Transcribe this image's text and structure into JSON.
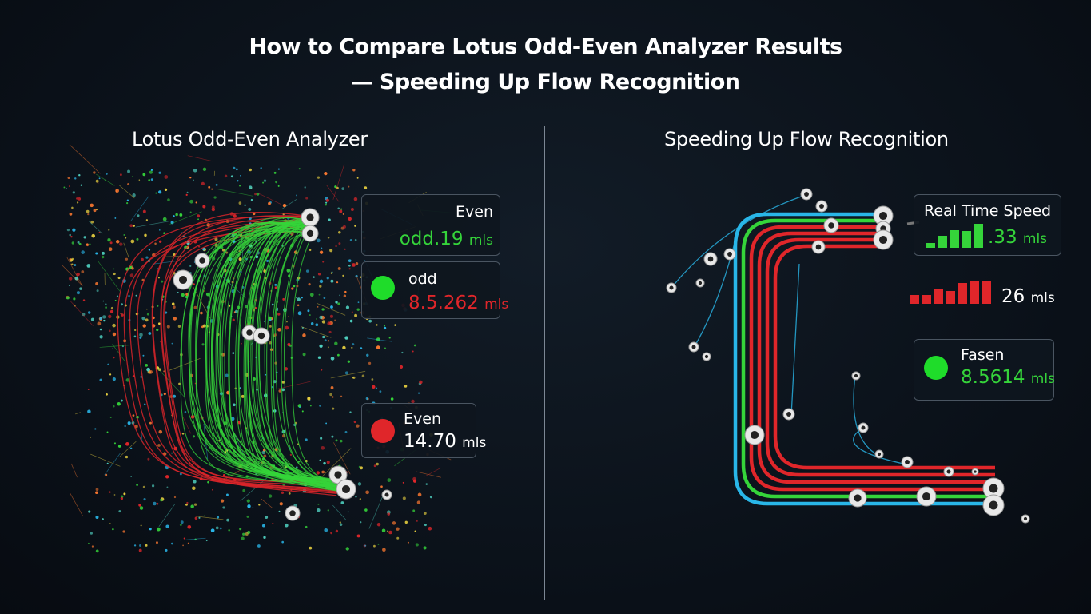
{
  "title_line1": "How to Compare Lotus Odd-Even Analyzer Results",
  "title_line2": "— Speeding Up Flow Recognition",
  "left_panel": {
    "heading": "Lotus Odd-Even Analyzer",
    "cards": [
      {
        "label": "Even",
        "value": "odd.19",
        "unit": "mls",
        "value_color": "#35d43a"
      },
      {
        "label": "odd",
        "value": "8.5.262",
        "unit": "mls",
        "value_color": "#e0262a",
        "dot_color": "#1fdc2a"
      },
      {
        "label": "Even",
        "value": "14.70",
        "unit": "mls",
        "value_color": "#ffffff",
        "dot_color": "#e0262a"
      }
    ]
  },
  "right_panel": {
    "heading": "Speeding Up Flow Recognition",
    "speed_card": {
      "label": "Real Time Speed",
      "value": ".33",
      "unit": "mls",
      "bars": [
        0.2,
        0.5,
        0.75,
        0.7,
        1.0
      ]
    },
    "red_meter": {
      "value": "26",
      "unit": "mls",
      "bars": [
        0.35,
        0.35,
        0.55,
        0.5,
        0.8,
        0.9,
        0.9
      ]
    },
    "fasen_card": {
      "label": "Fasen",
      "value": "8.5614",
      "unit": "mls",
      "dot_color": "#1fdc2a"
    }
  },
  "colors": {
    "green": "#35d43a",
    "red": "#e0262a",
    "cyan": "#29b6e8",
    "background": "#0b1119"
  }
}
